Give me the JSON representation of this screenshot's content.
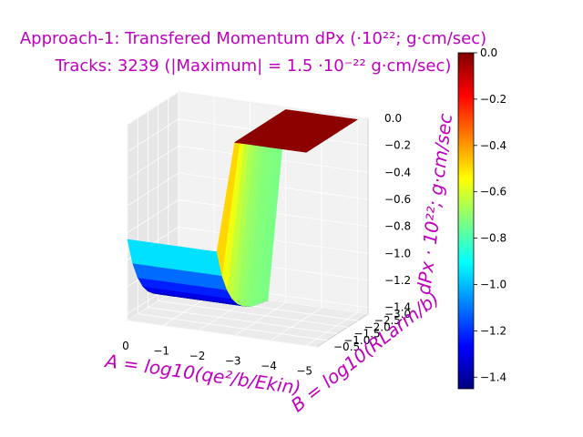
{
  "chart_data": {
    "type": "surface3d",
    "title_line1": "Approach-1: Transfered Momentum dPx (·10²²; g·cm/sec)",
    "title_line2": "Tracks: 3239 (|Maximum| =   1.5 ·10⁻²² g·cm/sec)",
    "xlabel": "A = log10(qe²/b/Ekin)",
    "ylabel": "B = log10(RLarm/b)",
    "zlabel": "dPx · 10²²; g·cm/sec",
    "colormap": "jet",
    "colors": {
      "label_color": "#bf00bf",
      "jet": [
        "#00007f",
        "#0000ff",
        "#007fff",
        "#00ffff",
        "#7fff7f",
        "#ffff00",
        "#ff7f00",
        "#ff0000",
        "#7f0000"
      ]
    },
    "x_ticks": [
      "0",
      "−1",
      "−2",
      "−3",
      "−4",
      "−5"
    ],
    "y_ticks": [
      "−3.0",
      "−2.5",
      "−2.0",
      "−1.5",
      "−1.0",
      "−0.5"
    ],
    "z_ticks": [
      "0.0",
      "−0.2",
      "−0.4",
      "−0.6",
      "−0.8",
      "−1.0",
      "−1.2",
      "−1.4"
    ],
    "colorbar_ticks": [
      "0.0",
      "−0.2",
      "−0.4",
      "−0.6",
      "−0.8",
      "−1.0",
      "−1.2",
      "−1.4"
    ],
    "xlim": [
      0,
      -5.3
    ],
    "ylim": [
      -0.5,
      -3.0
    ],
    "zlim": [
      -1.45,
      0.0
    ],
    "colorbar_range": [
      -1.45,
      0.0
    ],
    "grid": true,
    "legend": "none",
    "surface": {
      "x": [
        0.0,
        -0.5,
        -1.0,
        -1.5,
        -2.0,
        -2.5,
        -3.0,
        -3.5,
        -4.0,
        -4.5,
        -5.0
      ],
      "y": [
        -0.5,
        -0.75,
        -1.0,
        -1.25,
        -1.5,
        -1.75,
        -2.0,
        -2.25,
        -2.5,
        -2.75,
        -3.0
      ],
      "z": [
        [
          -0.85,
          -0.85,
          -0.85,
          -0.85,
          -0.85,
          -0.85,
          -0.02,
          -0.02,
          -0.02,
          -0.02,
          -0.02
        ],
        [
          -1.05,
          -1.05,
          -1.05,
          -1.05,
          -1.05,
          -1.05,
          -0.02,
          -0.02,
          -0.02,
          -0.02,
          -0.02
        ],
        [
          -1.18,
          -1.18,
          -1.18,
          -1.18,
          -1.18,
          -1.18,
          -0.02,
          -0.02,
          -0.02,
          -0.02,
          -0.02
        ],
        [
          -1.27,
          -1.27,
          -1.27,
          -1.27,
          -1.27,
          -1.27,
          -0.02,
          -0.02,
          -0.02,
          -0.02,
          -0.02
        ],
        [
          -1.33,
          -1.33,
          -1.33,
          -1.33,
          -1.33,
          -1.33,
          -0.02,
          -0.02,
          -0.02,
          -0.02,
          -0.02
        ],
        [
          -1.37,
          -1.37,
          -1.37,
          -1.37,
          -1.37,
          -1.37,
          -0.02,
          -0.02,
          -0.02,
          -0.02,
          -0.02
        ],
        [
          -1.4,
          -1.4,
          -1.4,
          -1.4,
          -1.4,
          -1.4,
          -0.02,
          -0.02,
          -0.02,
          -0.02,
          -0.02
        ],
        [
          -1.42,
          -1.42,
          -1.42,
          -1.42,
          -1.42,
          -1.42,
          -0.02,
          -0.02,
          -0.02,
          -0.02,
          -0.02
        ],
        [
          -1.43,
          -1.43,
          -1.43,
          -1.43,
          -1.43,
          -1.43,
          -0.02,
          -0.02,
          -0.02,
          -0.02,
          -0.02
        ],
        [
          -1.44,
          -1.44,
          -1.44,
          -1.44,
          -1.44,
          -1.44,
          -0.02,
          -0.02,
          -0.02,
          -0.02,
          -0.02
        ],
        [
          -1.45,
          -1.45,
          -1.45,
          -1.45,
          -1.45,
          -1.45,
          -0.02,
          -0.02,
          -0.02,
          -0.02,
          -0.02
        ]
      ]
    }
  }
}
